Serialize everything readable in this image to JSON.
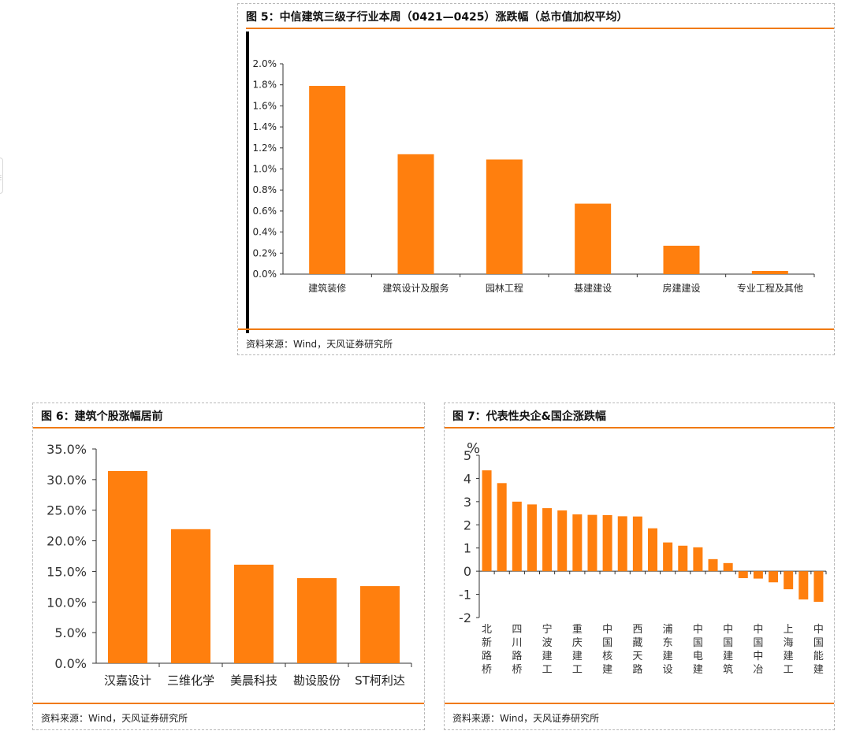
{
  "colors": {
    "accent": "#f07a10",
    "bar": "#ff7f0e",
    "axis": "#333333",
    "border": "#b8b8b8"
  },
  "fig5": {
    "title": "图 5：中信建筑三级子行业本周（0421—0425）涨跌幅（总市值加权平均）",
    "source": "资料来源：Wind，天风证券研究所",
    "chart_data": {
      "type": "bar",
      "categories": [
        "建筑装修",
        "建筑设计及服务",
        "园林工程",
        "基建建设",
        "房建建设",
        "专业工程及其他"
      ],
      "values": [
        1.79,
        1.14,
        1.09,
        0.67,
        0.27,
        0.03
      ],
      "unit": "%",
      "ylim": [
        0,
        2.0
      ],
      "yticks": [
        "0.0%",
        "0.2%",
        "0.4%",
        "0.6%",
        "0.8%",
        "1.0%",
        "1.2%",
        "1.4%",
        "1.6%",
        "1.8%",
        "2.0%"
      ],
      "grid": false
    }
  },
  "fig6": {
    "title": "图 6：建筑个股涨幅居前",
    "source": "资料来源：Wind，天风证券研究所",
    "chart_data": {
      "type": "bar",
      "categories": [
        "汉嘉设计",
        "三维化学",
        "美晨科技",
        "勘设股份",
        "ST柯利达"
      ],
      "values": [
        31.4,
        21.9,
        16.1,
        13.9,
        12.6
      ],
      "unit": "%",
      "ylim": [
        0,
        35
      ],
      "yticks": [
        "0.0%",
        "5.0%",
        "10.0%",
        "15.0%",
        "20.0%",
        "25.0%",
        "30.0%",
        "35.0%"
      ],
      "grid": false
    }
  },
  "fig7": {
    "title": "图 7：代表性央企&国企涨跌幅",
    "source": "资料来源：Wind，天风证券研究所",
    "chart_data": {
      "type": "bar",
      "categories": [
        "北新路桥",
        "",
        "四川路桥",
        "",
        "宁波建工",
        "",
        "重庆建工",
        "",
        "中国核建",
        "",
        "西藏天路",
        "",
        "浦东建设",
        "",
        "中国电建",
        "",
        "中国建筑",
        "",
        "中国中冶",
        "",
        "上海建工",
        "",
        "中国能建"
      ],
      "values": [
        4.35,
        3.8,
        3.0,
        2.88,
        2.72,
        2.62,
        2.45,
        2.43,
        2.42,
        2.37,
        2.36,
        1.85,
        1.24,
        1.1,
        1.03,
        0.52,
        0.35,
        -0.3,
        -0.32,
        -0.48,
        -0.78,
        -1.22,
        -1.32
      ],
      "ylabel": "%",
      "ylim": [
        -2,
        5
      ],
      "yticks": [
        "-2",
        "-1",
        "0",
        "1",
        "2",
        "3",
        "4",
        "5"
      ],
      "grid": false
    }
  }
}
